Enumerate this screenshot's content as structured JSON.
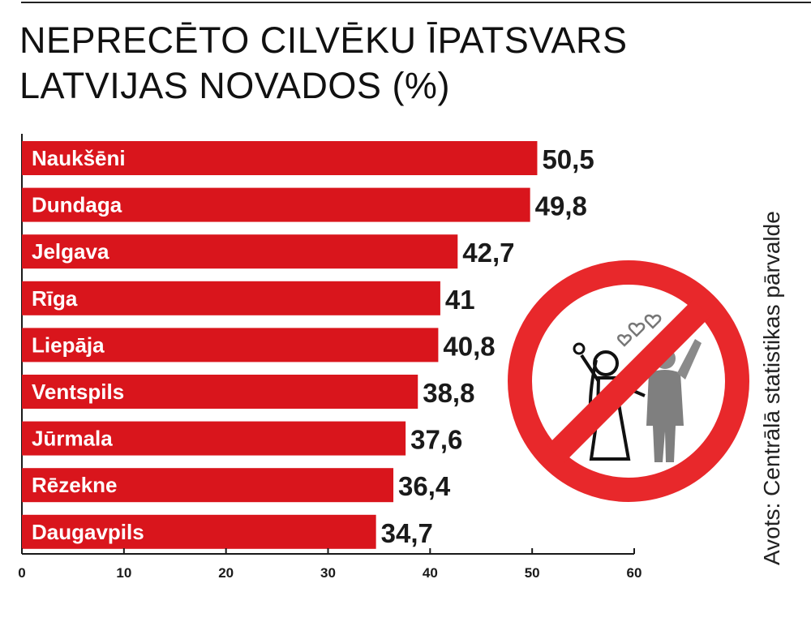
{
  "title": {
    "line1": "NEPRECĒTO CILVĒKU ĪPATSVARS",
    "line2": "LATVIJAS NOVADOS (%)"
  },
  "source": "Avots: Centrālā statistikas pārvalde",
  "colors": {
    "bar": "#d9151c",
    "sign": "#e8282b",
    "text": "#1a1a1a"
  },
  "illustration": {
    "name": "no-wedding-sign-icon"
  },
  "chart_data": {
    "type": "bar",
    "orientation": "horizontal",
    "title": "NEPRECĒTO CILVĒKU ĪPATSVARS LATVIJAS NOVADOS (%)",
    "categories": [
      "Naukšēni",
      "Dundaga",
      "Jelgava",
      "Rīga",
      "Liepāja",
      "Ventspils",
      "Jūrmala",
      "Rēzekne",
      "Daugavpils"
    ],
    "values": [
      50.5,
      49.8,
      42.7,
      41,
      40.8,
      38.8,
      37.6,
      36.4,
      34.7
    ],
    "value_labels": [
      "50,5",
      "49,8",
      "42,7",
      "41",
      "40,8",
      "38,8",
      "37,6",
      "36,4",
      "34,7"
    ],
    "xlim": [
      0,
      60
    ],
    "x_ticks": [
      0,
      10,
      20,
      30,
      40,
      50,
      60
    ],
    "x_tick_labels": [
      "0",
      "10",
      "20",
      "30",
      "40",
      "50",
      "60"
    ],
    "grid": false,
    "legend": "none"
  }
}
